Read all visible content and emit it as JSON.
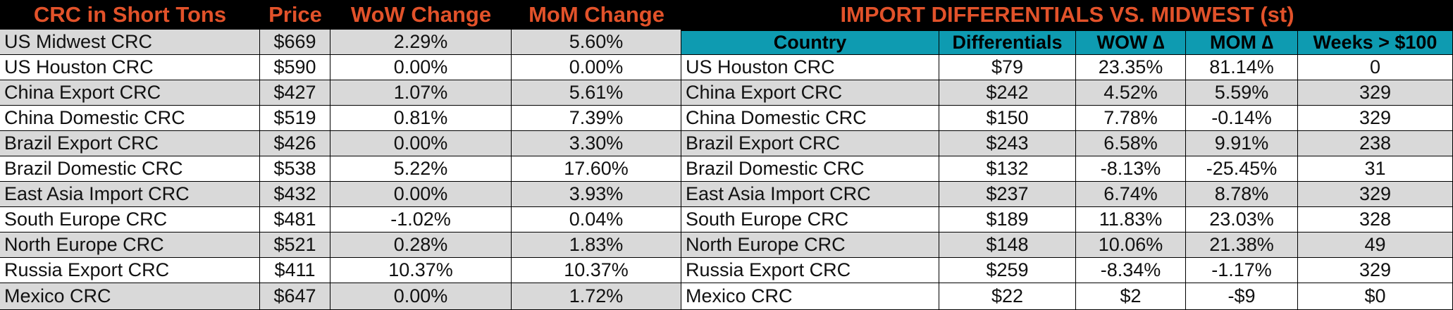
{
  "left_table": {
    "headers": [
      "CRC in Short Tons",
      "Price",
      "WoW Change",
      "MoM Change"
    ],
    "rows": [
      [
        "US Midwest CRC",
        "$669",
        "2.29%",
        "5.60%"
      ],
      [
        "US Houston CRC",
        "$590",
        "0.00%",
        "0.00%"
      ],
      [
        "China Export CRC",
        "$427",
        "1.07%",
        "5.61%"
      ],
      [
        "China Domestic CRC",
        "$519",
        "0.81%",
        "7.39%"
      ],
      [
        "Brazil Export CRC",
        "$426",
        "0.00%",
        "3.30%"
      ],
      [
        "Brazil Domestic CRC",
        "$538",
        "5.22%",
        "17.60%"
      ],
      [
        "East Asia Import CRC",
        "$432",
        "0.00%",
        "3.93%"
      ],
      [
        "South Europe CRC",
        "$481",
        "-1.02%",
        "0.04%"
      ],
      [
        "North Europe CRC",
        "$521",
        "0.28%",
        "1.83%"
      ],
      [
        "Russia Export CRC",
        "$411",
        "10.37%",
        "10.37%"
      ],
      [
        "Mexico CRC",
        "$647",
        "0.00%",
        "1.72%"
      ]
    ]
  },
  "right_table": {
    "title": "IMPORT DIFFERENTIALS VS. MIDWEST (st)",
    "headers": [
      "Country",
      "Differentials",
      "WOW ∆",
      "MOM ∆",
      "Weeks > $100"
    ],
    "rows": [
      [
        "US Houston CRC",
        "$79",
        "23.35%",
        "81.14%",
        "0"
      ],
      [
        "China Export CRC",
        "$242",
        "4.52%",
        "5.59%",
        "329"
      ],
      [
        "China Domestic CRC",
        "$150",
        "7.78%",
        "-0.14%",
        "329"
      ],
      [
        "Brazil Export CRC",
        "$243",
        "6.58%",
        "9.91%",
        "238"
      ],
      [
        "Brazil Domestic CRC",
        "$132",
        "-8.13%",
        "-25.45%",
        "31"
      ],
      [
        "East Asia Import CRC",
        "$237",
        "6.74%",
        "8.78%",
        "329"
      ],
      [
        "South Europe CRC",
        "$189",
        "11.83%",
        "23.03%",
        "328"
      ],
      [
        "North Europe CRC",
        "$148",
        "10.06%",
        "21.38%",
        "49"
      ],
      [
        "Russia Export CRC",
        "$259",
        "-8.34%",
        "-1.17%",
        "329"
      ],
      [
        "Mexico CRC",
        "$22",
        "$2",
        "-$9",
        "$0"
      ]
    ]
  },
  "colors": {
    "title_bar": "#000000",
    "title_text": "#e2522a",
    "header_fill": "#0e9bb1",
    "band_fill": "#d9d9d9"
  }
}
